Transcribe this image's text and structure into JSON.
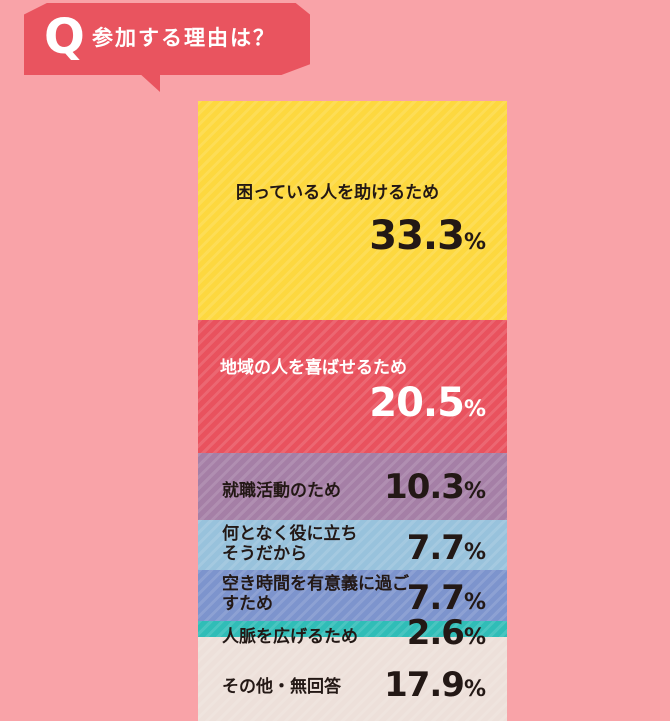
{
  "header": {
    "q_mark": "Q",
    "question": "参加する理由は？",
    "bubble_color": "#e9545f"
  },
  "chart_data": {
    "type": "bar",
    "stacked": true,
    "unit": "%",
    "segments": [
      {
        "label": "困っている人を助けるため",
        "value": "33.3",
        "pct": "%",
        "color": "#fdd83f"
      },
      {
        "label": "地域の人を喜ばせるため",
        "value": "20.5",
        "pct": "%",
        "color": "#e9525e"
      },
      {
        "label": "就職活動のため",
        "value": "10.3",
        "pct": "%",
        "color": "#a57fa6"
      },
      {
        "label": "何となく役に立ちそうだから",
        "value": "7.7",
        "pct": "%",
        "color": "#98c2dc"
      },
      {
        "label": "空き時間を有意義に過ごすため",
        "value": "7.7",
        "pct": "%",
        "color": "#7d94cd"
      },
      {
        "label": "人脈を広げるため",
        "value": "2.6",
        "pct": "%",
        "color": "#30bdb7"
      },
      {
        "label": "その他・無回答",
        "value": "17.9",
        "pct": "%",
        "color": "#ede0da"
      }
    ]
  }
}
